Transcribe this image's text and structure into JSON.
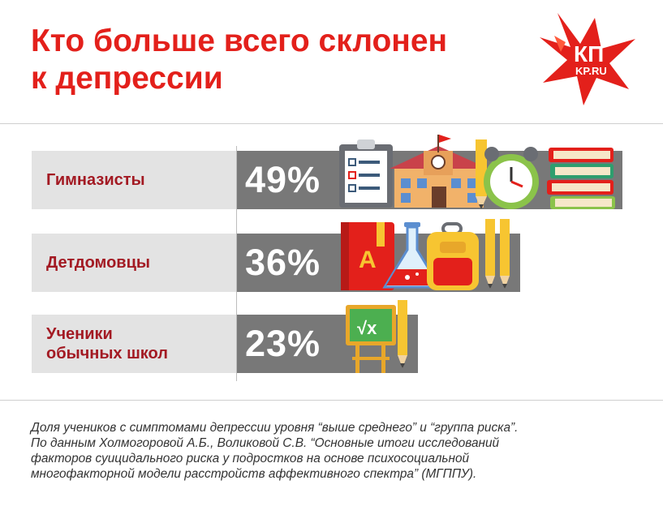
{
  "title_lines": [
    "Кто больше всего склонен",
    "к депрессии"
  ],
  "logo": {
    "line1": "КП",
    "line2": "KP.RU"
  },
  "chart_data": {
    "type": "bar",
    "orientation": "horizontal",
    "title": "Кто больше всего склонен к депрессии",
    "categories": [
      "Гимназисты",
      "Детдомовцы",
      "Ученики обычных школ"
    ],
    "values": [
      49,
      36,
      23
    ],
    "unit": "%",
    "value_labels": [
      "49%",
      "36%",
      "23%"
    ],
    "xlim": [
      0,
      100
    ],
    "grid": false,
    "colors": {
      "bar": "#787878",
      "label_bg": "#e3e3e3",
      "label_text": "#a31a23",
      "title": "#e3201b"
    }
  },
  "rows": [
    {
      "label": "Гимназисты",
      "value_text": "49%",
      "icons": [
        "clipboard-icon",
        "school-icon",
        "pencil-icon",
        "alarm-clock-icon",
        "books-stack-icon"
      ]
    },
    {
      "label_lines": [
        "Детдомовцы"
      ],
      "value_text": "36%",
      "icons": [
        "book-a-icon",
        "flask-icon",
        "backpack-icon",
        "pencils-icon"
      ]
    },
    {
      "label_lines": [
        "Ученики",
        "обычных школ"
      ],
      "value_text": "23%",
      "icons": [
        "chalkboard-sqrt-icon",
        "pencil-icon"
      ]
    }
  ],
  "chalkboard_text": "√x",
  "footnote": [
    "Доля учеников с симптомами депрессии уровня “выше среднего” и “группа риска”.",
    "По данным Холмогоровой А.Б., Воликовой С.В. “Основные итоги исследований",
    "факторов суицидального риска у подростков на основе психосоциальной",
    "многофакторной модели расстройств аффективного спектра” (МГППУ)."
  ]
}
